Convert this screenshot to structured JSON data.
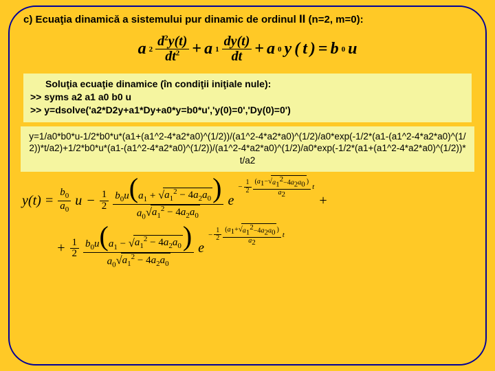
{
  "title": {
    "prefix": "c)  Ecuaţia dinamică a sistemului pur dinamic de ordinul ",
    "order": "II",
    "suffix": " (n=2, m=0):"
  },
  "main_equation": {
    "text_repr": "a2 · d²y(t)/dt² + a1 · dy(t)/dt + a0 y(t) = b0 u"
  },
  "solution_box": {
    "line1": "Soluţia ecuaţie dinamice (în condiţii iniţiale nule):",
    "line2": ">> syms a2 a1 a0 b0 u",
    "line3": ">> y=dsolve('a2*D2y+a1*Dy+a0*y=b0*u','y(0)=0','Dy(0)=0')"
  },
  "result_box": {
    "text": "y=1/a0*b0*u-1/2*b0*u*(a1+(a1^2-4*a2*a0)^(1/2))/(a1^2-4*a2*a0)^(1/2)/a0*exp(-1/2*(a1-(a1^2-4*a2*a0)^(1/2))*t/a2)+1/2*b0*u*(a1-(a1^2-4*a2*a0)^(1/2))/(a1^2-4*a2*a0)^(1/2)/a0*exp(-1/2*(a1+(a1^2-4*a2*a0)^(1/2))*t/a2"
  },
  "colors": {
    "background": "#ffc926",
    "border": "#000099",
    "box_bg": "#f5f5a0",
    "text": "#000000"
  },
  "labels": {
    "yt": "y(t) =",
    "u": "u",
    "minus": "−",
    "plus": "+",
    "half_num": "1",
    "half_den": "2",
    "b0": "b",
    "a0": "a",
    "a1": "a",
    "a2": "a",
    "sq": "a",
    "four": "4",
    "e": "e",
    "t": "t",
    "two": "2",
    "zero": "0",
    "one": "1"
  }
}
